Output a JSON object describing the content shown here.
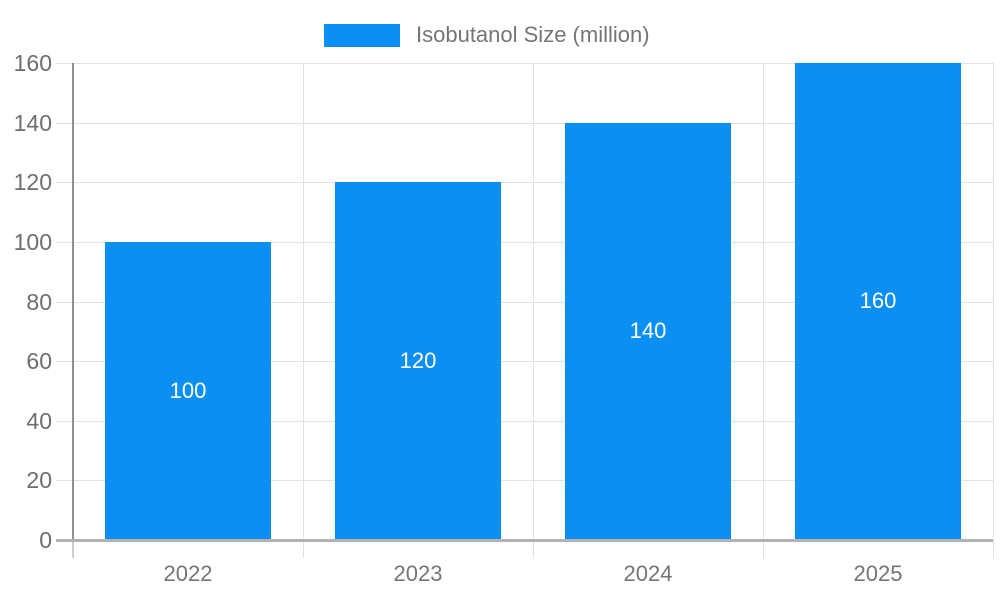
{
  "chart_data": {
    "type": "bar",
    "title": "",
    "legend": {
      "label": "Isobutanol Size (million)",
      "position": "top"
    },
    "categories": [
      "2022",
      "2023",
      "2024",
      "2025"
    ],
    "series": [
      {
        "name": "Isobutanol Size (million)",
        "values": [
          100,
          120,
          140,
          160
        ]
      }
    ],
    "data_labels": [
      "100",
      "120",
      "140",
      "160"
    ],
    "ylim": [
      0,
      160
    ],
    "yticks": [
      0,
      20,
      40,
      60,
      80,
      100,
      120,
      140,
      160
    ],
    "grid": true,
    "colors": {
      "bar": "#0c8ff2",
      "bar_label_text": "#ffffff",
      "y_tick_text": "#6e6e6e",
      "x_tick_text": "#757575",
      "legend_text": "#757575",
      "gridline": "#e2e2e2",
      "y_axis_line": "#909090",
      "x_axis_line": "#b2b2b2",
      "background": "#ffffff"
    }
  }
}
